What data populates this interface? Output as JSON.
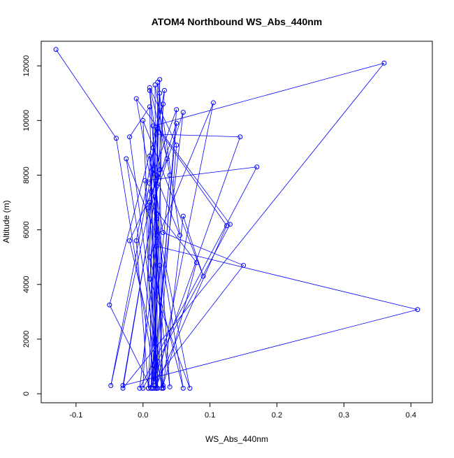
{
  "chart_data": {
    "type": "line",
    "title": "ATOM4 Northbound WS_Abs_440nm",
    "xlabel": "WS_Abs_440nm",
    "ylabel": "Altitude (m)",
    "xlim": [
      -0.152,
      0.432
    ],
    "ylim": [
      -330,
      12900
    ],
    "x_ticks": [
      -0.1,
      0.0,
      0.1,
      0.2,
      0.3,
      0.4
    ],
    "x_tick_labels": [
      "-0.1",
      "0.0",
      "0.1",
      "0.2",
      "0.3",
      "0.4"
    ],
    "y_ticks": [
      0,
      2000,
      4000,
      6000,
      8000,
      10000,
      12000
    ],
    "y_tick_labels": [
      "0",
      "2000",
      "4000",
      "6000",
      "8000",
      "10000",
      "12000"
    ],
    "grid": false,
    "legend": "none",
    "colors": {
      "series": "#0000ff",
      "axis": "#000000"
    },
    "series": [
      {
        "marker": "open-circle",
        "line": "solid",
        "x": [
          -0.13,
          -0.04,
          0.02,
          0.01,
          -0.02,
          0.03,
          0.06,
          0.09,
          0.0,
          0.02,
          0.05,
          0.01,
          0.036,
          -0.02,
          0.03,
          0.015,
          0.36,
          -0.03,
          0.025,
          0.01,
          0.04,
          0.008,
          0.02,
          0.145,
          0.012,
          -0.05,
          0.03,
          0.015,
          0.003,
          0.17,
          -0.005,
          0.02,
          0.41,
          -0.03,
          0.018,
          0.06,
          0.012,
          0.025,
          0.015,
          0.0,
          0.13,
          -0.01,
          0.02,
          0.022,
          0.01,
          0.03,
          0.15,
          0.008,
          0.04,
          0.018,
          0.02,
          0.105,
          0.01,
          0.06,
          0.012,
          0.025,
          0.028,
          -0.025,
          0.02,
          0.015,
          0.05,
          0.02,
          0.008,
          -0.01,
          0.032,
          0.01,
          0.07,
          0.02,
          0.022,
          0.125,
          0.018,
          0.01,
          0.08,
          0.03,
          0.015,
          0.055,
          0.022,
          0.018,
          0.05,
          0.01,
          -0.048,
          0.02,
          0.025,
          0.012
        ],
        "y": [
          12600,
          9350,
          200,
          10500,
          9400,
          220,
          6500,
          4300,
          10000,
          200,
          9100,
          11200,
          8600,
          5600,
          200,
          9800,
          12100,
          200,
          8200,
          11100,
          250,
          6800,
          9500,
          9400,
          200,
          3250,
          10600,
          200,
          7800,
          8300,
          200,
          5400,
          3080,
          300,
          7200,
          10300,
          200,
          4700,
          9000,
          200,
          6200,
          10800,
          6600,
          200,
          8700,
          5900,
          4700,
          200,
          8000,
          11300,
          200,
          10650,
          5000,
          200,
          7400,
          11000,
          200,
          8600,
          5800,
          200,
          9900,
          7600,
          200,
          5600,
          11100,
          4200,
          200,
          6400,
          9700,
          6150,
          200,
          7000,
          4800,
          300,
          8200,
          5800,
          11400,
          300,
          10400,
          7700,
          300,
          8000,
          11500,
          200
        ]
      }
    ]
  }
}
